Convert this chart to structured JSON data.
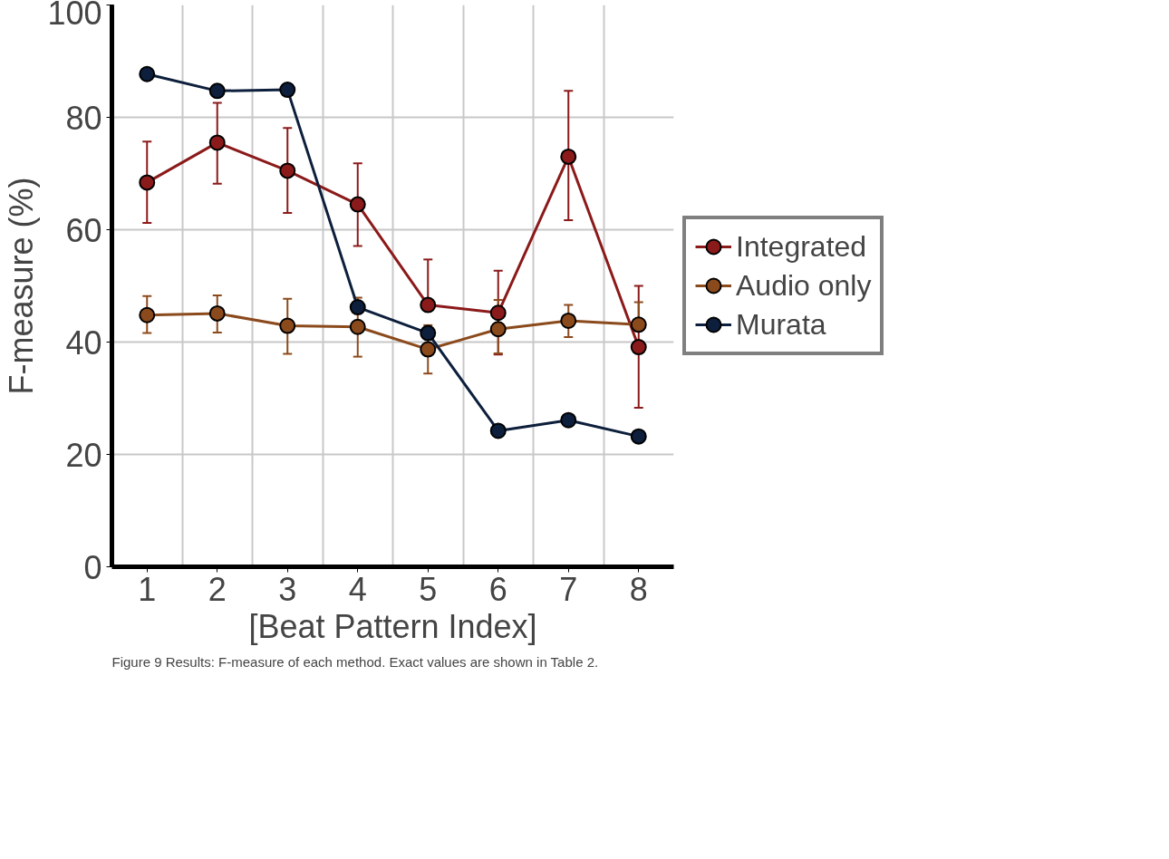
{
  "chart_data": {
    "type": "line",
    "ylabel": "F-measure (%)",
    "xlabel": "[Beat Pattern Index]",
    "categories": [
      "1",
      "2",
      "3",
      "4",
      "5",
      "6",
      "7",
      "8"
    ],
    "ylim": [
      0,
      100
    ],
    "yticks": [
      0,
      20,
      40,
      60,
      80,
      100
    ],
    "grid": true,
    "legend": "right",
    "marker": "circle",
    "series": [
      {
        "name": "Integrated",
        "color": "#8b1a1a",
        "values": [
          68.4,
          75.5,
          70.5,
          64.5,
          46.6,
          45.2,
          73,
          39.1
        ],
        "errors": [
          [
            61.2,
            75.7
          ],
          [
            68.2,
            82.6
          ],
          [
            63,
            78.1
          ],
          [
            57.1,
            71.8
          ],
          [
            46.6,
            54.7
          ],
          [
            37.8,
            52.7
          ],
          [
            61.7,
            84.7
          ],
          [
            28.3,
            50
          ]
        ]
      },
      {
        "name": "Audio only",
        "color": "#8b4a1c",
        "values": [
          44.8,
          45.1,
          42.9,
          42.7,
          38.7,
          42.3,
          43.8,
          43.1
        ],
        "errors": [
          [
            41.6,
            48.2
          ],
          [
            41.7,
            48.3
          ],
          [
            37.9,
            47.7
          ],
          [
            37.4,
            47.9
          ],
          [
            34.4,
            43
          ],
          [
            38,
            47.5
          ],
          [
            40.9,
            46.6
          ],
          [
            43.1,
            47.1
          ]
        ]
      },
      {
        "name": "Murata",
        "color": "#0d1f3c",
        "values": [
          87.7,
          84.7,
          84.9,
          46.2,
          41.6,
          24.2,
          26.1,
          23.2
        ]
      }
    ],
    "annotations": [
      "Figure 9 Results: F-measure of each method. Exact values are shown in Table 2."
    ]
  }
}
